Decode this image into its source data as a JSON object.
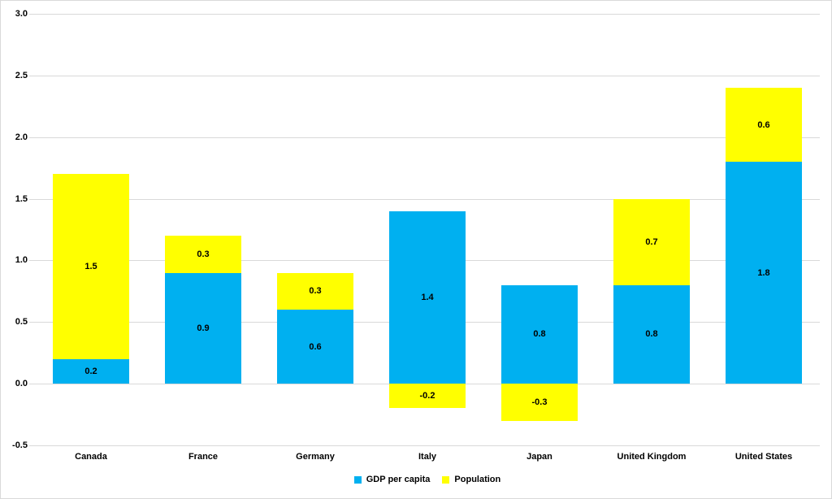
{
  "chart_data": {
    "type": "bar",
    "stacked": true,
    "title": "",
    "xlabel": "",
    "ylabel": "",
    "categories": [
      "Canada",
      "France",
      "Germany",
      "Italy",
      "Japan",
      "United Kingdom",
      "United States"
    ],
    "series": [
      {
        "name": "GDP per capita",
        "color": "#00B0F0",
        "values": [
          0.2,
          0.9,
          0.6,
          1.4,
          0.8,
          0.8,
          1.8
        ]
      },
      {
        "name": "Population",
        "color": "#FFFF00",
        "values": [
          1.5,
          0.3,
          0.3,
          -0.2,
          -0.3,
          0.7,
          0.6
        ]
      }
    ],
    "ylim": [
      -0.5,
      3.0
    ],
    "ytick_step": 0.5,
    "ytick_labels": [
      "3.0",
      "2.5",
      "2.0",
      "1.5",
      "1.0",
      "0.5",
      "0.0",
      "-0.5"
    ],
    "grid": true,
    "data_labels": true,
    "legend_position": "bottom",
    "colors": {
      "gridline": "#D9D9D9",
      "border": "#D9D9D9",
      "background": "#FFFFFF",
      "label_text": "#000000"
    }
  }
}
